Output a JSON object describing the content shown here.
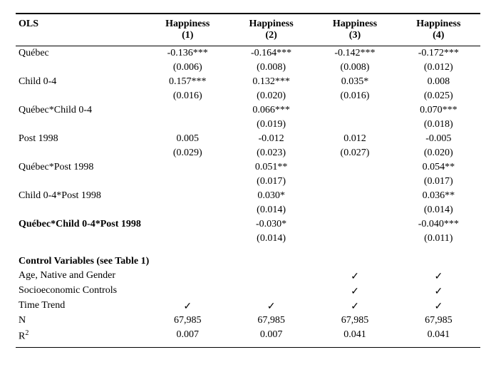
{
  "table": {
    "header": {
      "ols": "OLS",
      "cols": [
        "Happiness",
        "Happiness",
        "Happiness",
        "Happiness"
      ],
      "nums": [
        "(1)",
        "(2)",
        "(3)",
        "(4)"
      ]
    },
    "rows": [
      {
        "label": "Québec",
        "est": [
          "-0.136***",
          "-0.164***",
          "-0.142***",
          "-0.172***"
        ],
        "se": [
          "(0.006)",
          "(0.008)",
          "(0.008)",
          "(0.012)"
        ]
      },
      {
        "label": "Child 0-4",
        "est": [
          "0.157***",
          "0.132***",
          "0.035*",
          "0.008"
        ],
        "se": [
          "(0.016)",
          "(0.020)",
          "(0.016)",
          "(0.025)"
        ]
      },
      {
        "label": "Québec*Child 0-4",
        "est": [
          "",
          "0.066***",
          "",
          "0.070***"
        ],
        "se": [
          "",
          "(0.019)",
          "",
          "(0.018)"
        ]
      },
      {
        "label": "Post 1998",
        "est": [
          "0.005",
          "-0.012",
          "0.012",
          "-0.005"
        ],
        "se": [
          "(0.029)",
          "(0.023)",
          "(0.027)",
          "(0.020)"
        ]
      },
      {
        "label": "Québec*Post 1998",
        "est": [
          "",
          "0.051**",
          "",
          "0.054**"
        ],
        "se": [
          "",
          "(0.017)",
          "",
          "(0.017)"
        ]
      },
      {
        "label": "Child 0-4*Post 1998",
        "est": [
          "",
          "0.030*",
          "",
          "0.036**"
        ],
        "se": [
          "",
          "(0.014)",
          "",
          "(0.014)"
        ]
      },
      {
        "label": "Québec*Child 0-4*Post 1998",
        "bold": true,
        "est": [
          "",
          "-0.030*",
          "",
          "-0.040***"
        ],
        "se": [
          "",
          "(0.014)",
          "",
          "(0.011)"
        ]
      }
    ],
    "controls_header": "Control Variables (see Table 1)",
    "controls": [
      {
        "label": "Age, Native and Gender",
        "checks": [
          "",
          "",
          "✓",
          "✓"
        ]
      },
      {
        "label": "Socioeconomic Controls",
        "checks": [
          "",
          "",
          "✓",
          "✓"
        ]
      },
      {
        "label": "Time Trend",
        "checks": [
          "✓",
          "✓",
          "✓",
          "✓"
        ]
      }
    ],
    "n_label": "N",
    "n": [
      "67,985",
      "67,985",
      "67,985",
      "67,985"
    ],
    "r2_label_base": "R",
    "r2_label_sup": "2",
    "r2": [
      "0.007",
      "0.007",
      "0.041",
      "0.041"
    ]
  },
  "style": {
    "font_family": "Times New Roman",
    "font_size_pt": 11,
    "border_color": "#000000",
    "background_color": "#ffffff",
    "text_color": "#000000",
    "check_glyph": "✓"
  }
}
